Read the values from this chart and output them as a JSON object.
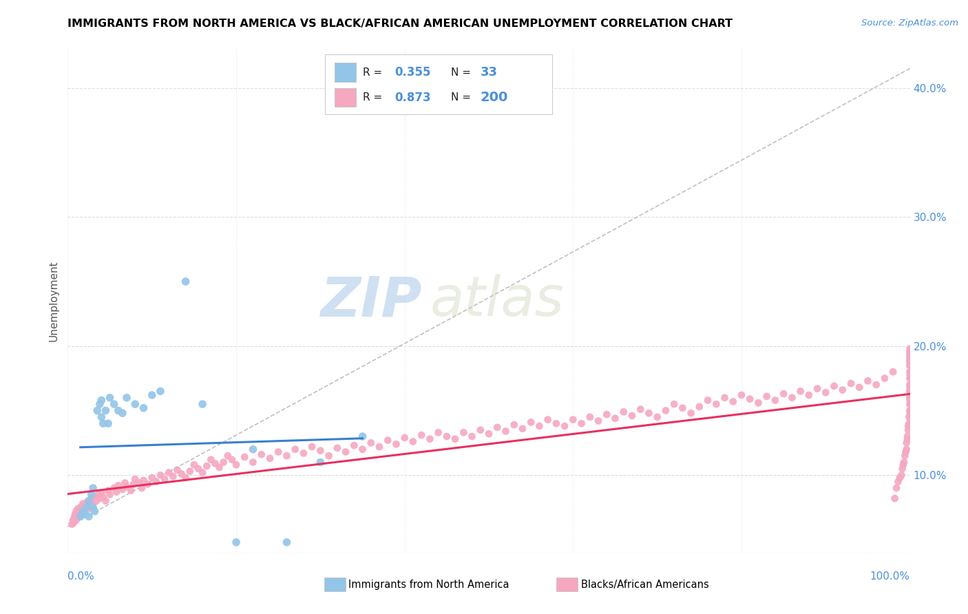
{
  "title": "IMMIGRANTS FROM NORTH AMERICA VS BLACK/AFRICAN AMERICAN UNEMPLOYMENT CORRELATION CHART",
  "source": "Source: ZipAtlas.com",
  "ylabel": "Unemployment",
  "legend_blue_r": "0.355",
  "legend_blue_n": "33",
  "legend_pink_r": "0.873",
  "legend_pink_n": "200",
  "blue_color": "#92C5E8",
  "pink_color": "#F5A8C0",
  "trend_blue_color": "#3A7FD0",
  "trend_pink_color": "#E83060",
  "trend_gray_color": "#C0C0C0",
  "watermark_zip": "ZIP",
  "watermark_atlas": "atlas",
  "blue_scatter_x": [
    0.015,
    0.018,
    0.02,
    0.022,
    0.025,
    0.025,
    0.028,
    0.03,
    0.03,
    0.032,
    0.035,
    0.038,
    0.04,
    0.04,
    0.042,
    0.045,
    0.048,
    0.05,
    0.055,
    0.06,
    0.065,
    0.07,
    0.08,
    0.09,
    0.1,
    0.11,
    0.14,
    0.16,
    0.2,
    0.22,
    0.26,
    0.3,
    0.35
  ],
  "blue_scatter_y": [
    0.068,
    0.072,
    0.07,
    0.075,
    0.068,
    0.08,
    0.085,
    0.075,
    0.09,
    0.072,
    0.15,
    0.155,
    0.145,
    0.158,
    0.14,
    0.15,
    0.14,
    0.16,
    0.155,
    0.15,
    0.148,
    0.16,
    0.155,
    0.152,
    0.162,
    0.165,
    0.25,
    0.155,
    0.048,
    0.12,
    0.048,
    0.11,
    0.13
  ],
  "pink_scatter_x": [
    0.005,
    0.006,
    0.007,
    0.008,
    0.008,
    0.009,
    0.01,
    0.01,
    0.011,
    0.012,
    0.012,
    0.013,
    0.014,
    0.015,
    0.015,
    0.016,
    0.017,
    0.018,
    0.018,
    0.019,
    0.02,
    0.021,
    0.022,
    0.023,
    0.024,
    0.025,
    0.026,
    0.028,
    0.03,
    0.032,
    0.034,
    0.036,
    0.038,
    0.04,
    0.042,
    0.045,
    0.048,
    0.05,
    0.055,
    0.058,
    0.06,
    0.065,
    0.068,
    0.07,
    0.075,
    0.078,
    0.08,
    0.085,
    0.088,
    0.09,
    0.095,
    0.1,
    0.105,
    0.11,
    0.115,
    0.12,
    0.125,
    0.13,
    0.135,
    0.14,
    0.145,
    0.15,
    0.155,
    0.16,
    0.165,
    0.17,
    0.175,
    0.18,
    0.185,
    0.19,
    0.195,
    0.2,
    0.21,
    0.22,
    0.23,
    0.24,
    0.25,
    0.26,
    0.27,
    0.28,
    0.29,
    0.3,
    0.31,
    0.32,
    0.33,
    0.34,
    0.35,
    0.36,
    0.37,
    0.38,
    0.39,
    0.4,
    0.41,
    0.42,
    0.43,
    0.44,
    0.45,
    0.46,
    0.47,
    0.48,
    0.49,
    0.5,
    0.51,
    0.52,
    0.53,
    0.54,
    0.55,
    0.56,
    0.57,
    0.58,
    0.59,
    0.6,
    0.61,
    0.62,
    0.63,
    0.64,
    0.65,
    0.66,
    0.67,
    0.68,
    0.69,
    0.7,
    0.71,
    0.72,
    0.73,
    0.74,
    0.75,
    0.76,
    0.77,
    0.78,
    0.79,
    0.8,
    0.81,
    0.82,
    0.83,
    0.84,
    0.85,
    0.86,
    0.87,
    0.88,
    0.89,
    0.9,
    0.91,
    0.92,
    0.93,
    0.94,
    0.95,
    0.96,
    0.97,
    0.98,
    0.982,
    0.984,
    0.986,
    0.988,
    0.99,
    0.991,
    0.992,
    0.993,
    0.994,
    0.995,
    0.996,
    0.996,
    0.997,
    0.997,
    0.998,
    0.998,
    0.999,
    0.999,
    1.0,
    1.0,
    1.0,
    1.0,
    1.0,
    1.0,
    1.0,
    1.0,
    1.0,
    1.0,
    1.0,
    1.0,
    1.0,
    1.0,
    1.0,
    1.0,
    1.0,
    1.0,
    1.0,
    1.0,
    1.0,
    1.0,
    1.0,
    1.0,
    1.0,
    1.0,
    1.0,
    1.0,
    1.0,
    1.0,
    1.0,
    1.0
  ],
  "pink_scatter_y": [
    0.062,
    0.065,
    0.063,
    0.068,
    0.066,
    0.07,
    0.065,
    0.072,
    0.068,
    0.07,
    0.074,
    0.072,
    0.069,
    0.075,
    0.073,
    0.07,
    0.076,
    0.073,
    0.078,
    0.074,
    0.072,
    0.075,
    0.078,
    0.076,
    0.08,
    0.074,
    0.079,
    0.082,
    0.077,
    0.083,
    0.08,
    0.085,
    0.082,
    0.086,
    0.083,
    0.08,
    0.088,
    0.085,
    0.09,
    0.087,
    0.092,
    0.089,
    0.094,
    0.091,
    0.088,
    0.093,
    0.097,
    0.094,
    0.09,
    0.096,
    0.093,
    0.098,
    0.095,
    0.1,
    0.097,
    0.102,
    0.099,
    0.104,
    0.101,
    0.098,
    0.103,
    0.108,
    0.105,
    0.102,
    0.107,
    0.112,
    0.109,
    0.106,
    0.11,
    0.115,
    0.112,
    0.108,
    0.114,
    0.11,
    0.116,
    0.113,
    0.118,
    0.115,
    0.12,
    0.117,
    0.122,
    0.119,
    0.115,
    0.121,
    0.118,
    0.123,
    0.12,
    0.125,
    0.122,
    0.127,
    0.124,
    0.129,
    0.126,
    0.131,
    0.128,
    0.133,
    0.13,
    0.128,
    0.133,
    0.13,
    0.135,
    0.132,
    0.137,
    0.134,
    0.139,
    0.136,
    0.141,
    0.138,
    0.143,
    0.14,
    0.138,
    0.143,
    0.14,
    0.145,
    0.142,
    0.147,
    0.144,
    0.149,
    0.146,
    0.151,
    0.148,
    0.145,
    0.15,
    0.155,
    0.152,
    0.148,
    0.153,
    0.158,
    0.155,
    0.16,
    0.157,
    0.162,
    0.159,
    0.156,
    0.161,
    0.158,
    0.163,
    0.16,
    0.165,
    0.162,
    0.167,
    0.164,
    0.169,
    0.166,
    0.171,
    0.168,
    0.173,
    0.17,
    0.175,
    0.18,
    0.082,
    0.09,
    0.095,
    0.098,
    0.1,
    0.105,
    0.108,
    0.11,
    0.115,
    0.118,
    0.12,
    0.125,
    0.128,
    0.13,
    0.135,
    0.138,
    0.14,
    0.145,
    0.148,
    0.15,
    0.155,
    0.158,
    0.16,
    0.165,
    0.168,
    0.17,
    0.175,
    0.178,
    0.18,
    0.185,
    0.188,
    0.19,
    0.195,
    0.198,
    0.185,
    0.19,
    0.193,
    0.196,
    0.188,
    0.192,
    0.185,
    0.18,
    0.175,
    0.17,
    0.165,
    0.16,
    0.155,
    0.15,
    0.145,
    0.14
  ],
  "xlim": [
    0.0,
    1.0
  ],
  "ylim": [
    0.04,
    0.43
  ],
  "y_tick_vals": [
    0.1,
    0.2,
    0.3,
    0.4
  ],
  "x_tick_vals": [
    0.0,
    0.2,
    0.4,
    0.6,
    0.8,
    1.0
  ]
}
